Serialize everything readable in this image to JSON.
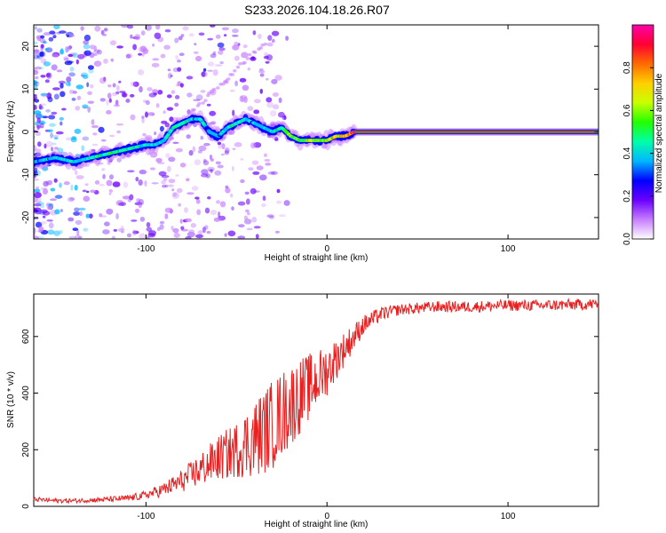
{
  "figure_title": "S233.2026.104.18.26.R07",
  "chart_data": [
    {
      "type": "heatmap",
      "title": "S233.2026.104.18.26.R07",
      "xlabel": "Height of straight line (km)",
      "ylabel": "Frequency (Hz)",
      "xlim": [
        -162,
        150
      ],
      "ylim": [
        -25,
        25
      ],
      "xticks": [
        -100,
        0,
        100
      ],
      "yticks": [
        -20,
        -10,
        0,
        10,
        20
      ],
      "colorbar": {
        "label": "Normalized spectral amplitude",
        "range": [
          0,
          1
        ],
        "ticks": [
          "0.0",
          "0.2",
          "0.4",
          "0.6",
          "0.8"
        ],
        "colors": [
          "#ffffff",
          "#c77dff",
          "#6a00ff",
          "#0000ff",
          "#00b7ff",
          "#00ffaa",
          "#22ff00",
          "#c8ff00",
          "#ffd000",
          "#ff6a00",
          "#ff0033",
          "#ff00aa"
        ]
      },
      "ridge": {
        "x": [
          -162,
          -150,
          -140,
          -130,
          -120,
          -110,
          -100,
          -95,
          -90,
          -85,
          -80,
          -75,
          -70,
          -65,
          -60,
          -55,
          -50,
          -45,
          -40,
          -35,
          -30,
          -25,
          -20,
          -15,
          -10,
          -5,
          0,
          5,
          10,
          15,
          20,
          50,
          100,
          150
        ],
        "freq": [
          -7,
          -6,
          -7,
          -6,
          -5,
          -4,
          -3,
          -3,
          -2,
          1,
          2,
          3,
          3,
          0,
          -1,
          1,
          2,
          3,
          2,
          1,
          0,
          1,
          -1,
          -2,
          -2,
          -2,
          -2,
          -1,
          -1,
          0,
          0,
          0,
          0,
          0
        ],
        "amplitude": [
          0.4,
          0.4,
          0.45,
          0.45,
          0.5,
          0.5,
          0.45,
          0.4,
          0.45,
          0.5,
          0.5,
          0.4,
          0.45,
          0.35,
          0.4,
          0.45,
          0.5,
          0.45,
          0.4,
          0.4,
          0.45,
          0.55,
          0.6,
          0.6,
          0.65,
          0.65,
          0.7,
          0.75,
          0.8,
          0.9,
          0.95,
          0.95,
          0.95,
          0.95
        ]
      }
    },
    {
      "type": "line",
      "xlabel": "Height of straight line (km)",
      "ylabel": "SNR (10 * v/v)",
      "xlim": [
        -162,
        150
      ],
      "ylim": [
        0,
        750
      ],
      "xticks": [
        -100,
        0,
        100
      ],
      "yticks": [
        0,
        200,
        400,
        600
      ],
      "series": [
        {
          "name": "SNR",
          "color": "#e82020",
          "x": [
            -162,
            -150,
            -140,
            -130,
            -120,
            -110,
            -100,
            -90,
            -80,
            -70,
            -60,
            -50,
            -40,
            -30,
            -20,
            -10,
            0,
            10,
            20,
            30,
            40,
            50,
            60,
            80,
            100,
            120,
            150
          ],
          "y": [
            25,
            20,
            20,
            22,
            25,
            28,
            40,
            60,
            90,
            130,
            170,
            200,
            240,
            290,
            360,
            420,
            480,
            560,
            640,
            680,
            695,
            700,
            705,
            705,
            710,
            710,
            715
          ],
          "noise_amplitude": [
            8,
            8,
            8,
            8,
            10,
            12,
            15,
            25,
            40,
            60,
            80,
            100,
            140,
            160,
            150,
            120,
            90,
            60,
            35,
            25,
            20,
            20,
            20,
            20,
            20,
            20,
            20
          ]
        }
      ]
    }
  ]
}
